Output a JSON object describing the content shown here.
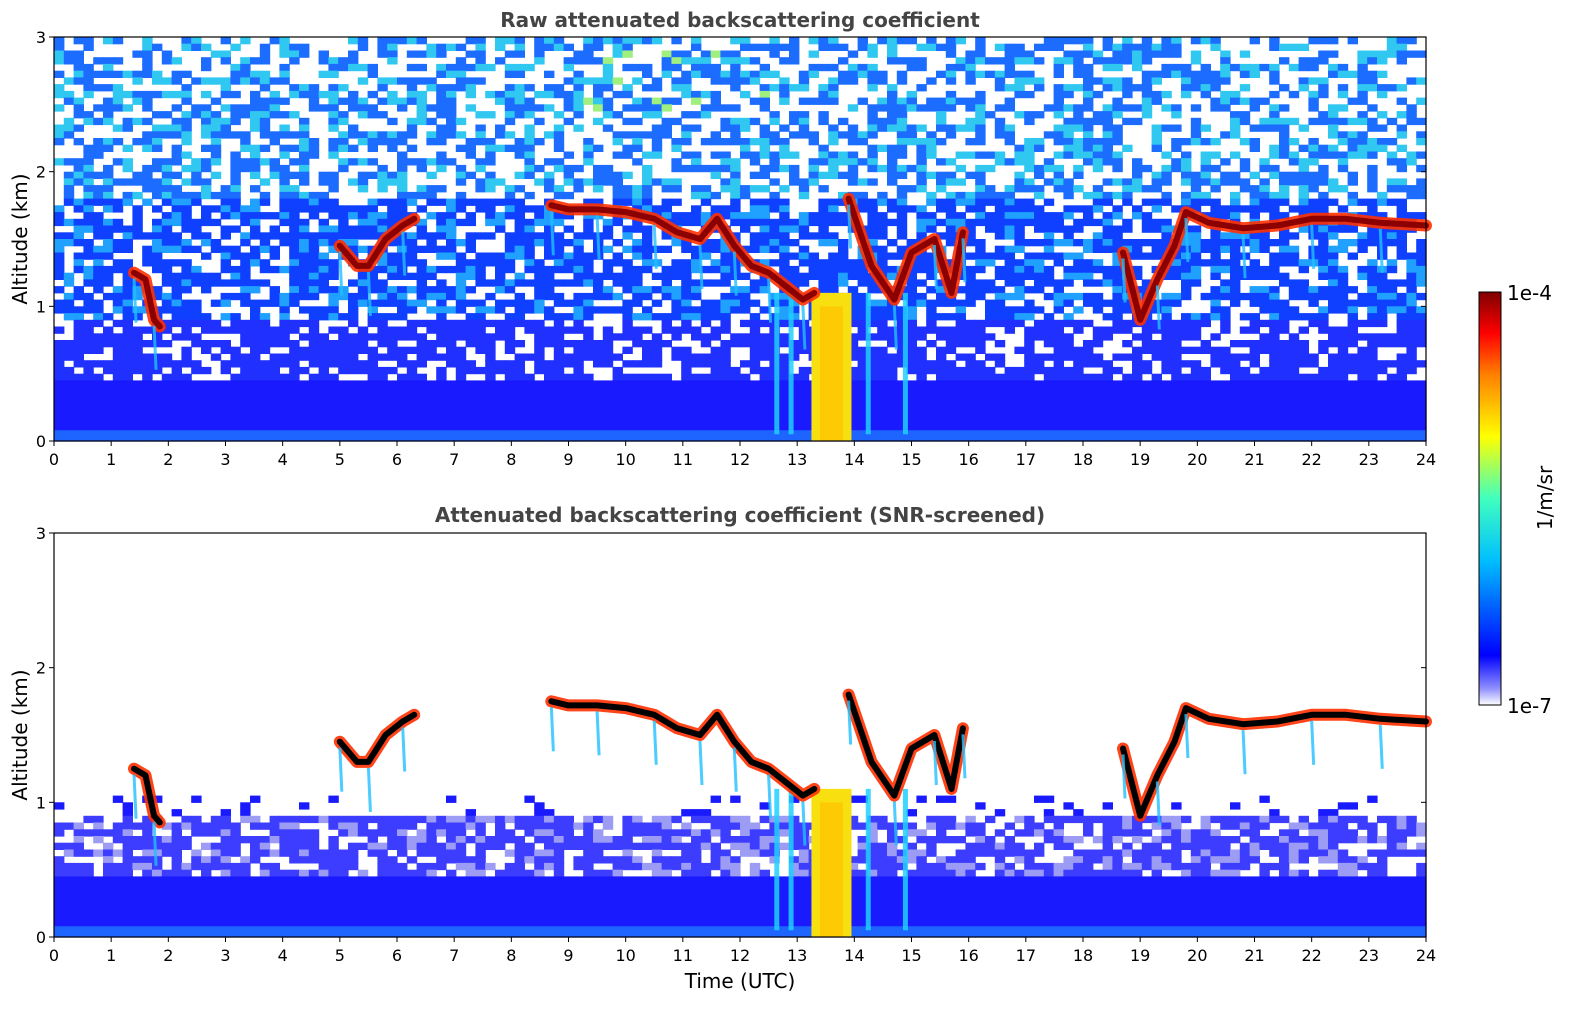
{
  "chart_data": [
    {
      "type": "heatmap",
      "title": "Raw attenuated backscattering coefficient",
      "xlabel": "",
      "ylabel": "Altitude (km)",
      "xlim": [
        0,
        24
      ],
      "ylim": [
        0,
        3
      ],
      "x_ticks": [
        0,
        1,
        2,
        3,
        4,
        5,
        6,
        7,
        8,
        9,
        10,
        11,
        12,
        13,
        14,
        15,
        16,
        17,
        18,
        19,
        20,
        21,
        22,
        23,
        24
      ],
      "y_ticks": [
        0,
        1,
        2,
        3
      ],
      "screened": false,
      "cloud_layers": [
        {
          "t": [
            1.4,
            1.6,
            1.75,
            1.85
          ],
          "alt": [
            1.25,
            1.2,
            0.9,
            0.85
          ]
        },
        {
          "t": [
            5.0,
            5.3,
            5.5,
            5.8,
            6.1,
            6.3
          ],
          "alt": [
            1.45,
            1.3,
            1.3,
            1.5,
            1.6,
            1.65
          ]
        },
        {
          "t": [
            8.7,
            9.0,
            9.5,
            10.0,
            10.5,
            10.9,
            11.3,
            11.6,
            11.9,
            12.2,
            12.5,
            12.8,
            13.1,
            13.3
          ],
          "alt": [
            1.75,
            1.72,
            1.72,
            1.7,
            1.65,
            1.55,
            1.5,
            1.65,
            1.45,
            1.3,
            1.25,
            1.15,
            1.05,
            1.1
          ]
        },
        {
          "t": [
            13.9,
            14.3,
            14.7,
            15.0,
            15.4,
            15.7,
            15.9
          ],
          "alt": [
            1.8,
            1.3,
            1.05,
            1.4,
            1.5,
            1.1,
            1.55
          ]
        },
        {
          "t": [
            18.7,
            19.0,
            19.3,
            19.6,
            19.8,
            20.2,
            20.8,
            21.4,
            22.0,
            22.6,
            23.2,
            24.0
          ],
          "alt": [
            1.4,
            0.9,
            1.2,
            1.45,
            1.7,
            1.62,
            1.58,
            1.6,
            1.65,
            1.65,
            1.62,
            1.6
          ]
        }
      ],
      "precip_shaft": {
        "t": [
          13.25,
          13.95
        ],
        "alt": [
          0,
          1.1
        ]
      }
    },
    {
      "type": "heatmap",
      "title": "Attenuated backscattering coefficient (SNR-screened)",
      "xlabel": "Time (UTC)",
      "ylabel": "Altitude (km)",
      "xlim": [
        0,
        24
      ],
      "ylim": [
        0,
        3
      ],
      "x_ticks": [
        0,
        1,
        2,
        3,
        4,
        5,
        6,
        7,
        8,
        9,
        10,
        11,
        12,
        13,
        14,
        15,
        16,
        17,
        18,
        19,
        20,
        21,
        22,
        23,
        24
      ],
      "y_ticks": [
        0,
        1,
        2,
        3
      ],
      "screened": true
    }
  ],
  "colorbar": {
    "max_label": "1e-4",
    "min_label": "1e-7",
    "units": "1/m/sr",
    "colormap": "jet",
    "colors": [
      "#e8e8f8",
      "#0000ff",
      "#00bfff",
      "#00ffbf",
      "#ffff00",
      "#ff7f00",
      "#ff0000",
      "#7f0000"
    ]
  }
}
